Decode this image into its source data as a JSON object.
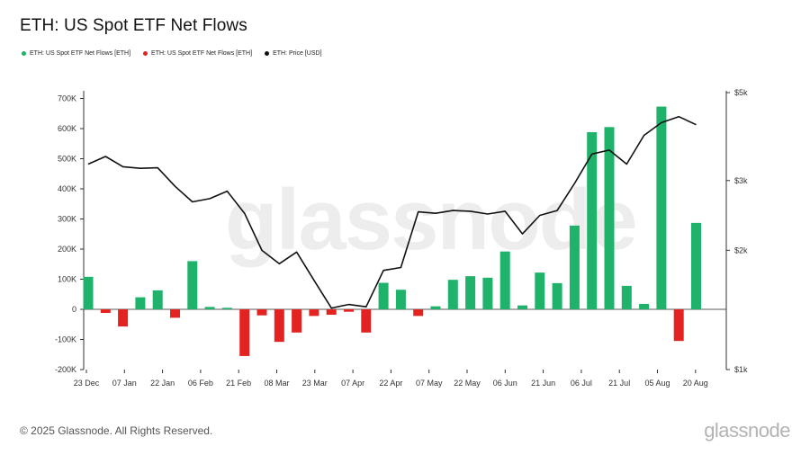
{
  "title": "ETH: US Spot ETF Net Flows",
  "legend": [
    {
      "label": "ETH: US Spot ETF Net Flows [ETH]",
      "color": "#1fb26a"
    },
    {
      "label": "ETH: US Spot ETF Net Flows [ETH]",
      "color": "#e32222"
    },
    {
      "label": "ETH: Price [USD]",
      "color": "#111111"
    }
  ],
  "watermark": "glassnode",
  "footer": "© 2025 Glassnode. All Rights Reserved.",
  "brand": "glassnode",
  "chart_data": {
    "type": "bar",
    "x_ticks": [
      "23 Dec",
      "07 Jan",
      "22 Jan",
      "06 Feb",
      "21 Feb",
      "08 Mar",
      "23 Mar",
      "07 Apr",
      "22 Apr",
      "07 May",
      "22 May",
      "06 Jun",
      "21 Jun",
      "06 Jul",
      "21 Jul",
      "05 Aug",
      "20 Aug"
    ],
    "y_left": {
      "ticks": [
        -200000,
        -100000,
        0,
        100000,
        200000,
        300000,
        400000,
        500000,
        600000,
        700000
      ],
      "labels": [
        "-200K",
        "-100K",
        "0",
        "100K",
        "200K",
        "300K",
        "400K",
        "500K",
        "600K",
        "700K"
      ],
      "ylim": [
        -200000,
        720000
      ]
    },
    "y_right": {
      "scale": "log",
      "ticks": [
        1000,
        2000,
        3000,
        5000
      ],
      "labels": [
        "$1k",
        "$2k",
        "$3k",
        "$5k"
      ],
      "ylim": [
        1000,
        5000
      ]
    },
    "positive_color": "#1fb26a",
    "negative_color": "#e32222",
    "line_color": "#111111",
    "flows": [
      108000,
      -12000,
      -57000,
      40000,
      63000,
      -28000,
      160000,
      8000,
      5000,
      -155000,
      -20000,
      -108000,
      -77000,
      -22000,
      -18000,
      -8000,
      -77000,
      88000,
      65000,
      -22000,
      10000,
      98000,
      110000,
      105000,
      192000,
      13000,
      122000,
      87000,
      278000,
      588000,
      605000,
      78000,
      18000,
      673000,
      -105000,
      287000
    ],
    "price": [
      3300,
      3450,
      3250,
      3220,
      3230,
      2900,
      2650,
      2700,
      2820,
      2480,
      2000,
      1850,
      1980,
      1680,
      1430,
      1460,
      1440,
      1780,
      1810,
      2500,
      2480,
      2520,
      2510,
      2470,
      2510,
      2200,
      2450,
      2520,
      2950,
      3500,
      3580,
      3300,
      3900,
      4200,
      4350,
      4150
    ]
  }
}
